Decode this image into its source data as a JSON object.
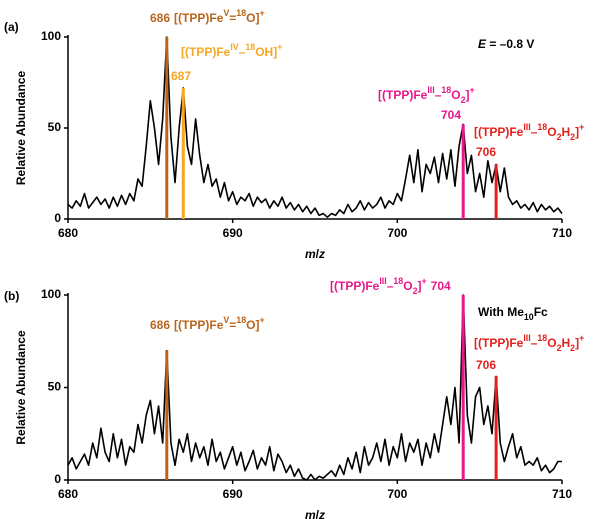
{
  "chart_data": [
    {
      "type": "line",
      "panel": "(a)",
      "ylabel": "Relative Abundance",
      "xlabel": [
        {
          "i": "m"
        },
        "/",
        {
          "i": "z"
        }
      ],
      "annotation": [
        {
          "i": "E"
        },
        " = –0.8 V"
      ],
      "xlim": [
        680,
        710
      ],
      "xticks": [
        680,
        690,
        700,
        710
      ],
      "ylim": [
        0,
        100
      ],
      "yticks": [
        0,
        50,
        100
      ],
      "color": "#000000",
      "x": [
        680,
        680.25,
        680.5,
        680.75,
        681,
        681.25,
        681.5,
        681.75,
        682,
        682.25,
        682.5,
        682.75,
        683,
        683.25,
        683.5,
        683.75,
        684,
        684.25,
        684.5,
        684.75,
        685,
        685.25,
        685.5,
        685.75,
        686,
        686.25,
        686.5,
        686.75,
        687,
        687.25,
        687.5,
        687.75,
        688,
        688.25,
        688.5,
        688.75,
        689,
        689.25,
        689.5,
        689.75,
        690,
        690.25,
        690.5,
        690.75,
        691,
        691.25,
        691.5,
        691.75,
        692,
        692.25,
        692.5,
        692.75,
        693,
        693.25,
        693.5,
        693.75,
        694,
        694.25,
        694.5,
        694.75,
        695,
        695.25,
        695.5,
        695.75,
        696,
        696.25,
        696.5,
        696.75,
        697,
        697.25,
        697.5,
        697.75,
        698,
        698.25,
        698.5,
        698.75,
        699,
        699.25,
        699.5,
        699.75,
        700,
        700.25,
        700.5,
        700.75,
        701,
        701.25,
        701.5,
        701.75,
        702,
        702.25,
        702.5,
        702.75,
        703,
        703.25,
        703.5,
        703.75,
        704,
        704.25,
        704.5,
        704.75,
        705,
        705.25,
        705.5,
        705.75,
        706,
        706.25,
        706.5,
        706.75,
        707,
        707.25,
        707.5,
        707.75,
        708,
        708.25,
        708.5,
        708.75,
        709,
        709.25,
        709.5,
        709.75,
        710
      ],
      "values": [
        8,
        6,
        10,
        7,
        14,
        6,
        9,
        12,
        8,
        11,
        6,
        12,
        7,
        13,
        8,
        14,
        10,
        22,
        18,
        40,
        65,
        50,
        30,
        55,
        100,
        45,
        20,
        50,
        72,
        40,
        30,
        55,
        35,
        20,
        30,
        18,
        22,
        12,
        20,
        10,
        15,
        8,
        12,
        10,
        14,
        7,
        12,
        9,
        11,
        6,
        10,
        7,
        12,
        6,
        9,
        5,
        8,
        4,
        7,
        3,
        6,
        2,
        3,
        1,
        3,
        2,
        5,
        3,
        8,
        4,
        6,
        10,
        5,
        9,
        6,
        8,
        12,
        6,
        10,
        8,
        14,
        10,
        22,
        35,
        20,
        38,
        15,
        30,
        25,
        34,
        20,
        36,
        22,
        38,
        18,
        40,
        52,
        25,
        35,
        15,
        25,
        12,
        32,
        20,
        30,
        15,
        28,
        12,
        8,
        10,
        6,
        8,
        5,
        9,
        4,
        8,
        5,
        7,
        4,
        6,
        3
      ],
      "peaks": [
        {
          "x": 686,
          "value": 100,
          "color": "#b8651b",
          "label": [
            "[(TPP)Fe",
            {
              "sup": "V"
            },
            "=",
            {
              "sup": "18"
            },
            "O]",
            {
              "sup": "+"
            }
          ]
        },
        {
          "x": 687,
          "value": 72,
          "color": "#f5a623",
          "label": [
            "[(TPP)Fe",
            {
              "sup": "IV"
            },
            "–",
            {
              "sup": "18"
            },
            "OH]",
            {
              "sup": "+"
            }
          ]
        },
        {
          "x": 704,
          "value": 52,
          "color": "#e6198a",
          "label": [
            "[(TPP)Fe",
            {
              "sup": "III"
            },
            "–",
            {
              "sup": "18"
            },
            "O",
            {
              "sub": "2"
            },
            "]",
            {
              "sup": "+"
            }
          ]
        },
        {
          "x": 706,
          "value": 30,
          "color": "#e3211c",
          "label": [
            "[(TPP)Fe",
            {
              "sup": "III"
            },
            "–",
            {
              "sup": "18"
            },
            "O",
            {
              "sub": "2"
            },
            "H",
            {
              "sub": "2"
            },
            "]",
            {
              "sup": "+"
            }
          ]
        }
      ]
    },
    {
      "type": "line",
      "panel": "(b)",
      "ylabel": "Relative Abundance",
      "xlabel": [
        {
          "i": "m"
        },
        "/",
        {
          "i": "z"
        }
      ],
      "annotation": [
        "With Me",
        {
          "sub": "10"
        },
        "Fc"
      ],
      "xlim": [
        680,
        710
      ],
      "xticks": [
        680,
        690,
        700,
        710
      ],
      "ylim": [
        0,
        100
      ],
      "yticks": [
        0,
        50,
        100
      ],
      "color": "#000000",
      "x": [
        680,
        680.25,
        680.5,
        680.75,
        681,
        681.25,
        681.5,
        681.75,
        682,
        682.25,
        682.5,
        682.75,
        683,
        683.25,
        683.5,
        683.75,
        684,
        684.25,
        684.5,
        684.75,
        685,
        685.25,
        685.5,
        685.75,
        686,
        686.25,
        686.5,
        686.75,
        687,
        687.25,
        687.5,
        687.75,
        688,
        688.25,
        688.5,
        688.75,
        689,
        689.25,
        689.5,
        689.75,
        690,
        690.25,
        690.5,
        690.75,
        691,
        691.25,
        691.5,
        691.75,
        692,
        692.25,
        692.5,
        692.75,
        693,
        693.25,
        693.5,
        693.75,
        694,
        694.25,
        694.5,
        694.75,
        695,
        695.25,
        695.5,
        695.75,
        696,
        696.25,
        696.5,
        696.75,
        697,
        697.25,
        697.5,
        697.75,
        698,
        698.25,
        698.5,
        698.75,
        699,
        699.25,
        699.5,
        699.75,
        700,
        700.25,
        700.5,
        700.75,
        701,
        701.25,
        701.5,
        701.75,
        702,
        702.25,
        702.5,
        702.75,
        703,
        703.25,
        703.5,
        703.75,
        704,
        704.25,
        704.5,
        704.75,
        705,
        705.25,
        705.5,
        705.75,
        706,
        706.25,
        706.5,
        706.75,
        707,
        707.25,
        707.5,
        707.75,
        708,
        708.25,
        708.5,
        708.75,
        709,
        709.25,
        709.5,
        709.75,
        710
      ],
      "values": [
        8,
        12,
        6,
        10,
        14,
        8,
        20,
        12,
        28,
        15,
        10,
        25,
        12,
        22,
        8,
        18,
        15,
        30,
        20,
        35,
        43,
        25,
        40,
        20,
        70,
        20,
        8,
        22,
        15,
        25,
        10,
        20,
        12,
        18,
        8,
        22,
        10,
        15,
        6,
        12,
        18,
        8,
        15,
        5,
        10,
        16,
        6,
        12,
        8,
        18,
        5,
        14,
        10,
        4,
        8,
        2,
        6,
        1,
        0,
        3,
        0,
        2,
        1,
        3,
        5,
        2,
        8,
        3,
        12,
        6,
        15,
        4,
        18,
        8,
        12,
        20,
        10,
        22,
        8,
        18,
        12,
        25,
        10,
        20,
        15,
        22,
        8,
        20,
        12,
        25,
        15,
        30,
        45,
        30,
        50,
        20,
        100,
        35,
        20,
        45,
        50,
        30,
        40,
        25,
        56,
        20,
        10,
        18,
        25,
        12,
        18,
        8,
        10,
        8,
        12,
        5,
        8,
        4,
        6,
        10,
        10
      ],
      "peaks": [
        {
          "x": 686,
          "value": 70,
          "color": "#b8651b",
          "label": [
            "[(TPP)Fe",
            {
              "sup": "V"
            },
            "=",
            {
              "sup": "18"
            },
            "O]",
            {
              "sup": "+"
            }
          ]
        },
        {
          "x": 704,
          "value": 100,
          "color": "#e6198a",
          "label": [
            "[(TPP)Fe",
            {
              "sup": "III"
            },
            "–",
            {
              "sup": "18"
            },
            "O",
            {
              "sub": "2"
            },
            "]",
            {
              "sup": "+"
            }
          ]
        },
        {
          "x": 706,
          "value": 56,
          "color": "#e3211c",
          "label": [
            "[(TPP)Fe",
            {
              "sup": "III"
            },
            "–",
            {
              "sup": "18"
            },
            "O",
            {
              "sub": "2"
            },
            "H",
            {
              "sub": "2"
            },
            "]",
            {
              "sup": "+"
            }
          ]
        }
      ]
    }
  ]
}
